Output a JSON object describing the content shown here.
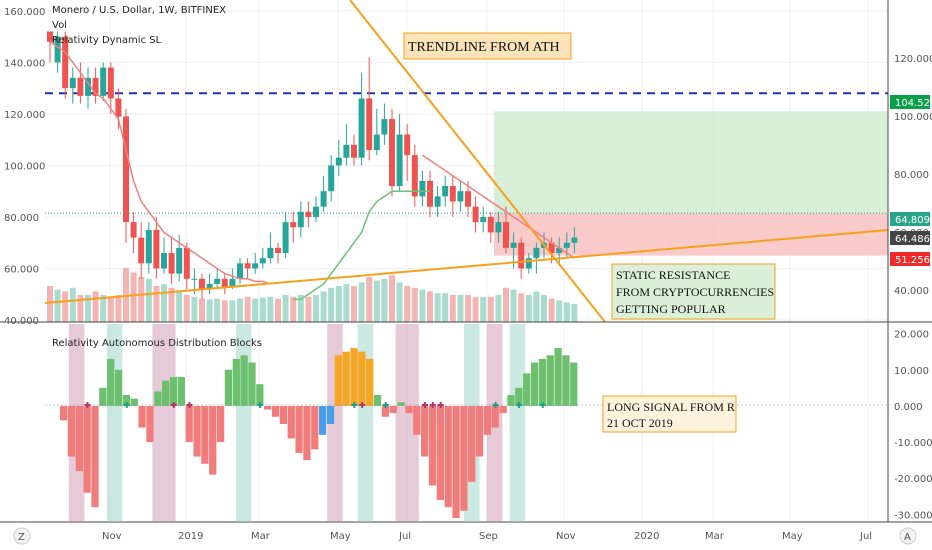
{
  "header": {
    "symbol_title": "Monero / U.S. Dollar, 1W, BITFINEX",
    "indicator_vol": "Vol",
    "indicator_sl": "Relativity Dynamic SL",
    "lower_title": "Relativity Autonomous Distribution Blocks"
  },
  "axes": {
    "left_ticks": [
      "160.000",
      "140.000",
      "120.000",
      "100.000",
      "80.000",
      "60.000",
      "40.000"
    ],
    "right_ticks": [
      "120.000",
      "100.000",
      "80.000",
      "60.000",
      "40.000"
    ],
    "lower_ticks": [
      "20.000",
      "10.000",
      "0.000",
      "-10.000",
      "-20.000",
      "-30.000"
    ],
    "x_ticks": [
      "Nov",
      "2019",
      "Mar",
      "May",
      "Jul",
      "Sep",
      "Nov",
      "2020",
      "Mar",
      "May",
      "Jul"
    ],
    "corner_left": "Z",
    "corner_right": "A"
  },
  "badges": {
    "resistance": "104.523",
    "price": "64.809",
    "sl": "64.486",
    "stop": "51.256",
    "colors": {
      "resistance": "#0aa04a",
      "price": "#2aa58a",
      "sl": "#444444",
      "stop": "#ef2a2a"
    }
  },
  "annotations": {
    "trendline": "TRENDLINE FROM ATH",
    "static_resistance_lines": [
      "STATIC RESISTANCE",
      "FROM CRYPTOCURRENCIES",
      "GETTING POPULAR"
    ],
    "long_signal_lines": [
      "LONG SIGNAL FROM R",
      " 21 OCT 2019"
    ]
  },
  "chart_data": {
    "type": "candlestick",
    "ylim": [
      40,
      165
    ],
    "lower_ylim": [
      -31,
      21
    ],
    "candles": [
      [
        152,
        148,
        150,
        140
      ],
      [
        140,
        150,
        152,
        136
      ],
      [
        150,
        130,
        152,
        126
      ],
      [
        130,
        134,
        138,
        124
      ],
      [
        134,
        127,
        140,
        124
      ],
      [
        127,
        134,
        138,
        122
      ],
      [
        134,
        127,
        138,
        124
      ],
      [
        127,
        138,
        140,
        125
      ],
      [
        138,
        126,
        140,
        120
      ],
      [
        126,
        119,
        130,
        114
      ],
      [
        119,
        78,
        122,
        70
      ],
      [
        78,
        72,
        82,
        66
      ],
      [
        72,
        62,
        78,
        56
      ],
      [
        62,
        75,
        78,
        58
      ],
      [
        75,
        60,
        80,
        56
      ],
      [
        60,
        66,
        72,
        58
      ],
      [
        66,
        58,
        72,
        54
      ],
      [
        58,
        68,
        73,
        55
      ],
      [
        68,
        56,
        70,
        52
      ],
      [
        56,
        56,
        60,
        50
      ],
      [
        56,
        52,
        58,
        48
      ],
      [
        52,
        54,
        58,
        50
      ],
      [
        54,
        56,
        60,
        52
      ],
      [
        56,
        53,
        58,
        50
      ],
      [
        53,
        56,
        60,
        52
      ],
      [
        56,
        62,
        64,
        54
      ],
      [
        62,
        60,
        64,
        56
      ],
      [
        60,
        62,
        66,
        58
      ],
      [
        62,
        64,
        68,
        60
      ],
      [
        64,
        68,
        74,
        62
      ],
      [
        68,
        66,
        70,
        62
      ],
      [
        66,
        78,
        82,
        64
      ],
      [
        78,
        76,
        82,
        70
      ],
      [
        76,
        82,
        86,
        72
      ],
      [
        82,
        80,
        86,
        76
      ],
      [
        80,
        84,
        88,
        78
      ],
      [
        84,
        90,
        96,
        82
      ],
      [
        90,
        100,
        104,
        86
      ],
      [
        100,
        103,
        110,
        96
      ],
      [
        103,
        108,
        116,
        100
      ],
      [
        108,
        103,
        112,
        100
      ],
      [
        103,
        126,
        136,
        100
      ],
      [
        126,
        106,
        142,
        102
      ],
      [
        106,
        112,
        122,
        104
      ],
      [
        112,
        118,
        124,
        108
      ],
      [
        118,
        92,
        122,
        88
      ],
      [
        92,
        112,
        120,
        90
      ],
      [
        112,
        104,
        116,
        94
      ],
      [
        104,
        88,
        108,
        84
      ],
      [
        88,
        94,
        98,
        84
      ],
      [
        94,
        84,
        98,
        80
      ],
      [
        84,
        88,
        92,
        80
      ],
      [
        88,
        92,
        96,
        84
      ],
      [
        92,
        86,
        96,
        80
      ],
      [
        86,
        90,
        94,
        82
      ],
      [
        90,
        84,
        94,
        80
      ],
      [
        84,
        78,
        88,
        74
      ],
      [
        78,
        80,
        84,
        74
      ],
      [
        80,
        74,
        82,
        70
      ],
      [
        74,
        78,
        82,
        70
      ],
      [
        78,
        68,
        84,
        66
      ],
      [
        68,
        70,
        74,
        60
      ],
      [
        70,
        60,
        72,
        56
      ],
      [
        60,
        64,
        66,
        58
      ],
      [
        64,
        68,
        70,
        58
      ],
      [
        68,
        70,
        74,
        64
      ],
      [
        70,
        66,
        72,
        62
      ],
      [
        66,
        68,
        72,
        62
      ],
      [
        68,
        70,
        74,
        64
      ],
      [
        70,
        72,
        76,
        66
      ]
    ],
    "sl_line": {
      "pink_start": [
        148,
        146,
        144,
        140,
        136,
        132,
        128,
        126,
        122,
        118,
        106,
        94,
        86,
        82,
        78,
        74,
        72,
        70,
        68,
        66,
        64,
        62,
        60,
        58,
        57,
        56,
        56,
        55,
        55,
        54
      ],
      "green_mid": [
        48,
        48,
        50,
        52,
        54,
        58,
        62,
        66,
        70,
        74,
        82,
        86,
        88,
        90,
        90,
        90,
        90,
        90,
        90
      ],
      "pink_end": [
        104,
        102,
        100,
        98,
        96,
        94,
        92,
        90,
        88,
        86,
        84,
        82,
        80,
        78,
        76,
        74,
        72,
        70,
        68,
        66,
        64
      ]
    },
    "volume": [
      40,
      36,
      34,
      38,
      30,
      30,
      34,
      30,
      28,
      30,
      60,
      55,
      50,
      48,
      40,
      42,
      38,
      35,
      30,
      28,
      26,
      25,
      26,
      24,
      24,
      26,
      28,
      26,
      27,
      28,
      26,
      30,
      28,
      30,
      28,
      30,
      34,
      38,
      40,
      42,
      40,
      44,
      50,
      46,
      48,
      52,
      44,
      40,
      38,
      36,
      34,
      32,
      32,
      30,
      30,
      30,
      28,
      28,
      28,
      30,
      38,
      36,
      32,
      30,
      34,
      30,
      26,
      24,
      22,
      20
    ],
    "osc_values": [
      -4,
      -14,
      -18,
      -24,
      -28,
      5,
      13,
      10,
      3,
      2,
      -6,
      -10,
      4,
      7,
      8,
      8,
      -10,
      -14,
      -16,
      -19,
      -10,
      10,
      13,
      14,
      12,
      6,
      -1,
      -3,
      -5,
      -9,
      -13,
      -15,
      -12,
      -8,
      -5,
      14,
      15,
      16,
      15,
      13,
      3,
      -3,
      -2,
      1,
      -2,
      -8,
      -14,
      -22,
      -26,
      -28,
      -31,
      -29,
      -21,
      -14,
      -8,
      -6,
      -2,
      3,
      5,
      9,
      12,
      13,
      14,
      16,
      14,
      12
    ],
    "osc_blue": [
      33,
      34,
      35
    ],
    "osc_orange": [
      35,
      36,
      37,
      38,
      39
    ],
    "signal_bands": [
      {
        "start": 3,
        "end": 4,
        "color": "pink"
      },
      {
        "start": 8,
        "end": 9,
        "color": "teal"
      },
      {
        "start": 14,
        "end": 16,
        "color": "pink"
      },
      {
        "start": 25,
        "end": 26,
        "color": "teal"
      },
      {
        "start": 37,
        "end": 38,
        "color": "pink"
      },
      {
        "start": 41,
        "end": 42,
        "color": "teal"
      },
      {
        "start": 46,
        "end": 48,
        "color": "pink"
      },
      {
        "start": 55,
        "end": 56,
        "color": "teal"
      },
      {
        "start": 58,
        "end": 59,
        "color": "pink"
      },
      {
        "start": 61,
        "end": 62,
        "color": "teal"
      }
    ],
    "signal_markers": [
      {
        "i": 3,
        "color": "pink"
      },
      {
        "i": 8,
        "color": "teal"
      },
      {
        "i": 14,
        "color": "pink"
      },
      {
        "i": 16,
        "color": "pink"
      },
      {
        "i": 25,
        "color": "teal"
      },
      {
        "i": 37,
        "color": "teal"
      },
      {
        "i": 38,
        "color": "pink"
      },
      {
        "i": 41,
        "color": "teal"
      },
      {
        "i": 46,
        "color": "pink"
      },
      {
        "i": 47,
        "color": "pink"
      },
      {
        "i": 48,
        "color": "pink"
      },
      {
        "i": 55,
        "color": "teal"
      },
      {
        "i": 58,
        "color": "teal"
      },
      {
        "i": 61,
        "color": "teal"
      }
    ],
    "resistance_level": 128,
    "entry_level": 81.5,
    "stop_level": 65,
    "target_level": 121
  }
}
